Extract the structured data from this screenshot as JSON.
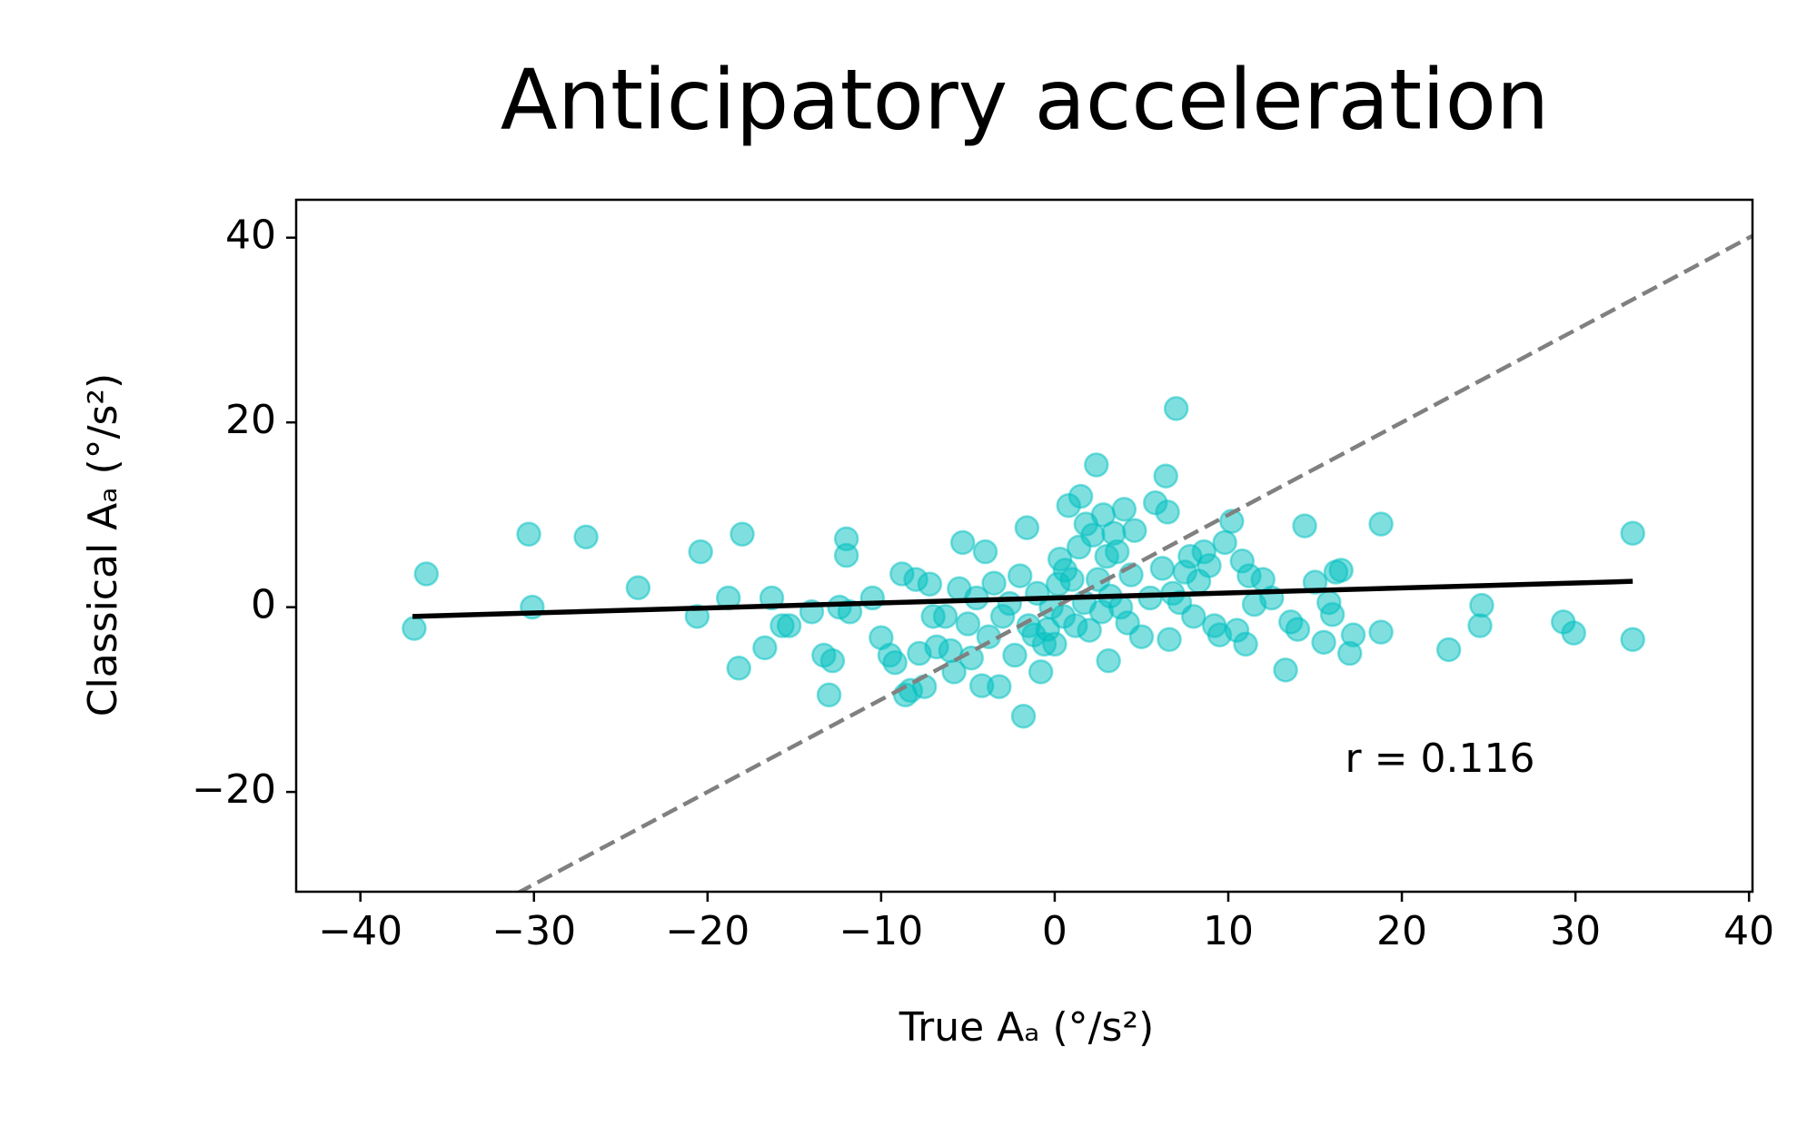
{
  "chart_data": {
    "type": "scatter",
    "title": "Anticipatory acceleration",
    "x_label": "True Aₐ (°/s²)",
    "y_label": "Classical Aₐ (°/s²)",
    "annotation": "r = 0.116",
    "xlim": [
      -43.7,
      40.2
    ],
    "ylim": [
      -30.8,
      44.1
    ],
    "xticks": [
      {
        "value": -40,
        "label": "−40"
      },
      {
        "value": -30,
        "label": "−30"
      },
      {
        "value": -20,
        "label": "−20"
      },
      {
        "value": -10,
        "label": "−10"
      },
      0,
      10,
      20,
      30,
      40
    ],
    "yticks": [
      {
        "value": -20,
        "label": "−20"
      },
      0,
      20,
      40
    ],
    "grid": false,
    "series": [
      {
        "color": "#00bfbf",
        "x": [
          -36.9,
          -36.2,
          -30.3,
          -30.1,
          -27,
          -24,
          -20.6,
          -20.4,
          -18.8,
          -18.2,
          -18,
          -16.7,
          -16.3,
          -15.7,
          -15.3,
          -14,
          -13.3,
          -13,
          -12.8,
          -12.4,
          -12,
          -12,
          -11.8,
          -10.5,
          -10,
          -9.5,
          -9.2,
          -8.8,
          -8.6,
          -8.3,
          -8,
          -7.8,
          -7.5,
          -7.2,
          -7,
          -6.8,
          -6.3,
          -6,
          -5.8,
          -5.5,
          -5.3,
          -5,
          -4.8,
          -4.5,
          -4.2,
          -4,
          -3.8,
          -3.5,
          -3.2,
          -3,
          -2.6,
          -2.3,
          -2,
          -1.8,
          -1.6,
          -1.5,
          -1.2,
          -1,
          -0.8,
          -0.6,
          -0.4,
          -0.2,
          0,
          0.2,
          0.3,
          0.5,
          0.6,
          0.8,
          1,
          1.2,
          1.4,
          1.5,
          1.7,
          1.8,
          2,
          2.2,
          2.4,
          2.5,
          2.7,
          2.8,
          3,
          3.1,
          3.2,
          3.4,
          3.6,
          3.8,
          4,
          4.2,
          4.4,
          4.6,
          5,
          5.5,
          5.8,
          6.2,
          6.4,
          6.5,
          6.6,
          6.8,
          7,
          7.2,
          7.5,
          7.8,
          8,
          8.3,
          8.6,
          8.9,
          9.2,
          9.5,
          9.8,
          10.2,
          10.5,
          10.8,
          11,
          11.2,
          11.5,
          12,
          12.5,
          13.3,
          13.6,
          14,
          14.4,
          15,
          15.5,
          15.8,
          16,
          16.2,
          16.5,
          17,
          17.2,
          18.8,
          18.8,
          22.7,
          24.5,
          24.6,
          29.3,
          29.9,
          33.3,
          33.3
        ],
        "values": [
          -2.3,
          3.6,
          7.9,
          0,
          7.6,
          2.1,
          -1,
          6,
          1,
          -6.6,
          7.9,
          -4.4,
          1,
          -2,
          -2,
          -0.5,
          -5.2,
          -9.5,
          -5.8,
          0,
          7.4,
          5.6,
          -0.5,
          1,
          -3.3,
          -5.2,
          -6,
          3.6,
          -9.5,
          -9,
          3,
          -5,
          -8.6,
          2.5,
          -1,
          -4.3,
          -1,
          -4.7,
          -7,
          2,
          7,
          -1.8,
          -5.5,
          1,
          -8.5,
          6,
          -3.2,
          2.6,
          -8.6,
          -1,
          0.4,
          -5.2,
          3.4,
          -11.8,
          8.6,
          -2,
          -3,
          1.5,
          -7,
          -4,
          -2.4,
          0,
          -4,
          2.5,
          5.2,
          -1,
          4,
          11,
          3,
          -2,
          6.5,
          12,
          0.5,
          9,
          -2.5,
          7.8,
          15.4,
          3,
          -0.5,
          10,
          5.5,
          -5.8,
          1.2,
          8,
          6,
          0,
          10.6,
          -1.7,
          3.5,
          8.3,
          -3.2,
          1,
          11.3,
          4.2,
          14.2,
          10.3,
          -3.5,
          1.5,
          21.5,
          0.5,
          3.8,
          5.5,
          -1,
          2.8,
          6,
          4.5,
          -2,
          -3,
          7,
          9.3,
          -2.5,
          5,
          -4,
          3.4,
          0.3,
          3,
          1,
          -6.8,
          -1.6,
          -2.4,
          8.8,
          2.7,
          -3.8,
          0.5,
          -0.8,
          3.8,
          4,
          -5,
          -3,
          9,
          -2.7,
          -4.6,
          -2,
          0.2,
          -1.6,
          -2.8,
          8,
          -3.5
        ]
      }
    ],
    "lines": [
      {
        "x": [
          -31,
          40.2
        ],
        "values": [
          -31,
          40.2
        ],
        "color": "#808080",
        "dash": true
      },
      {
        "x": [
          -37,
          33.3
        ],
        "values": [
          -1,
          2.8
        ],
        "color": "#000000",
        "dash": false
      }
    ]
  }
}
